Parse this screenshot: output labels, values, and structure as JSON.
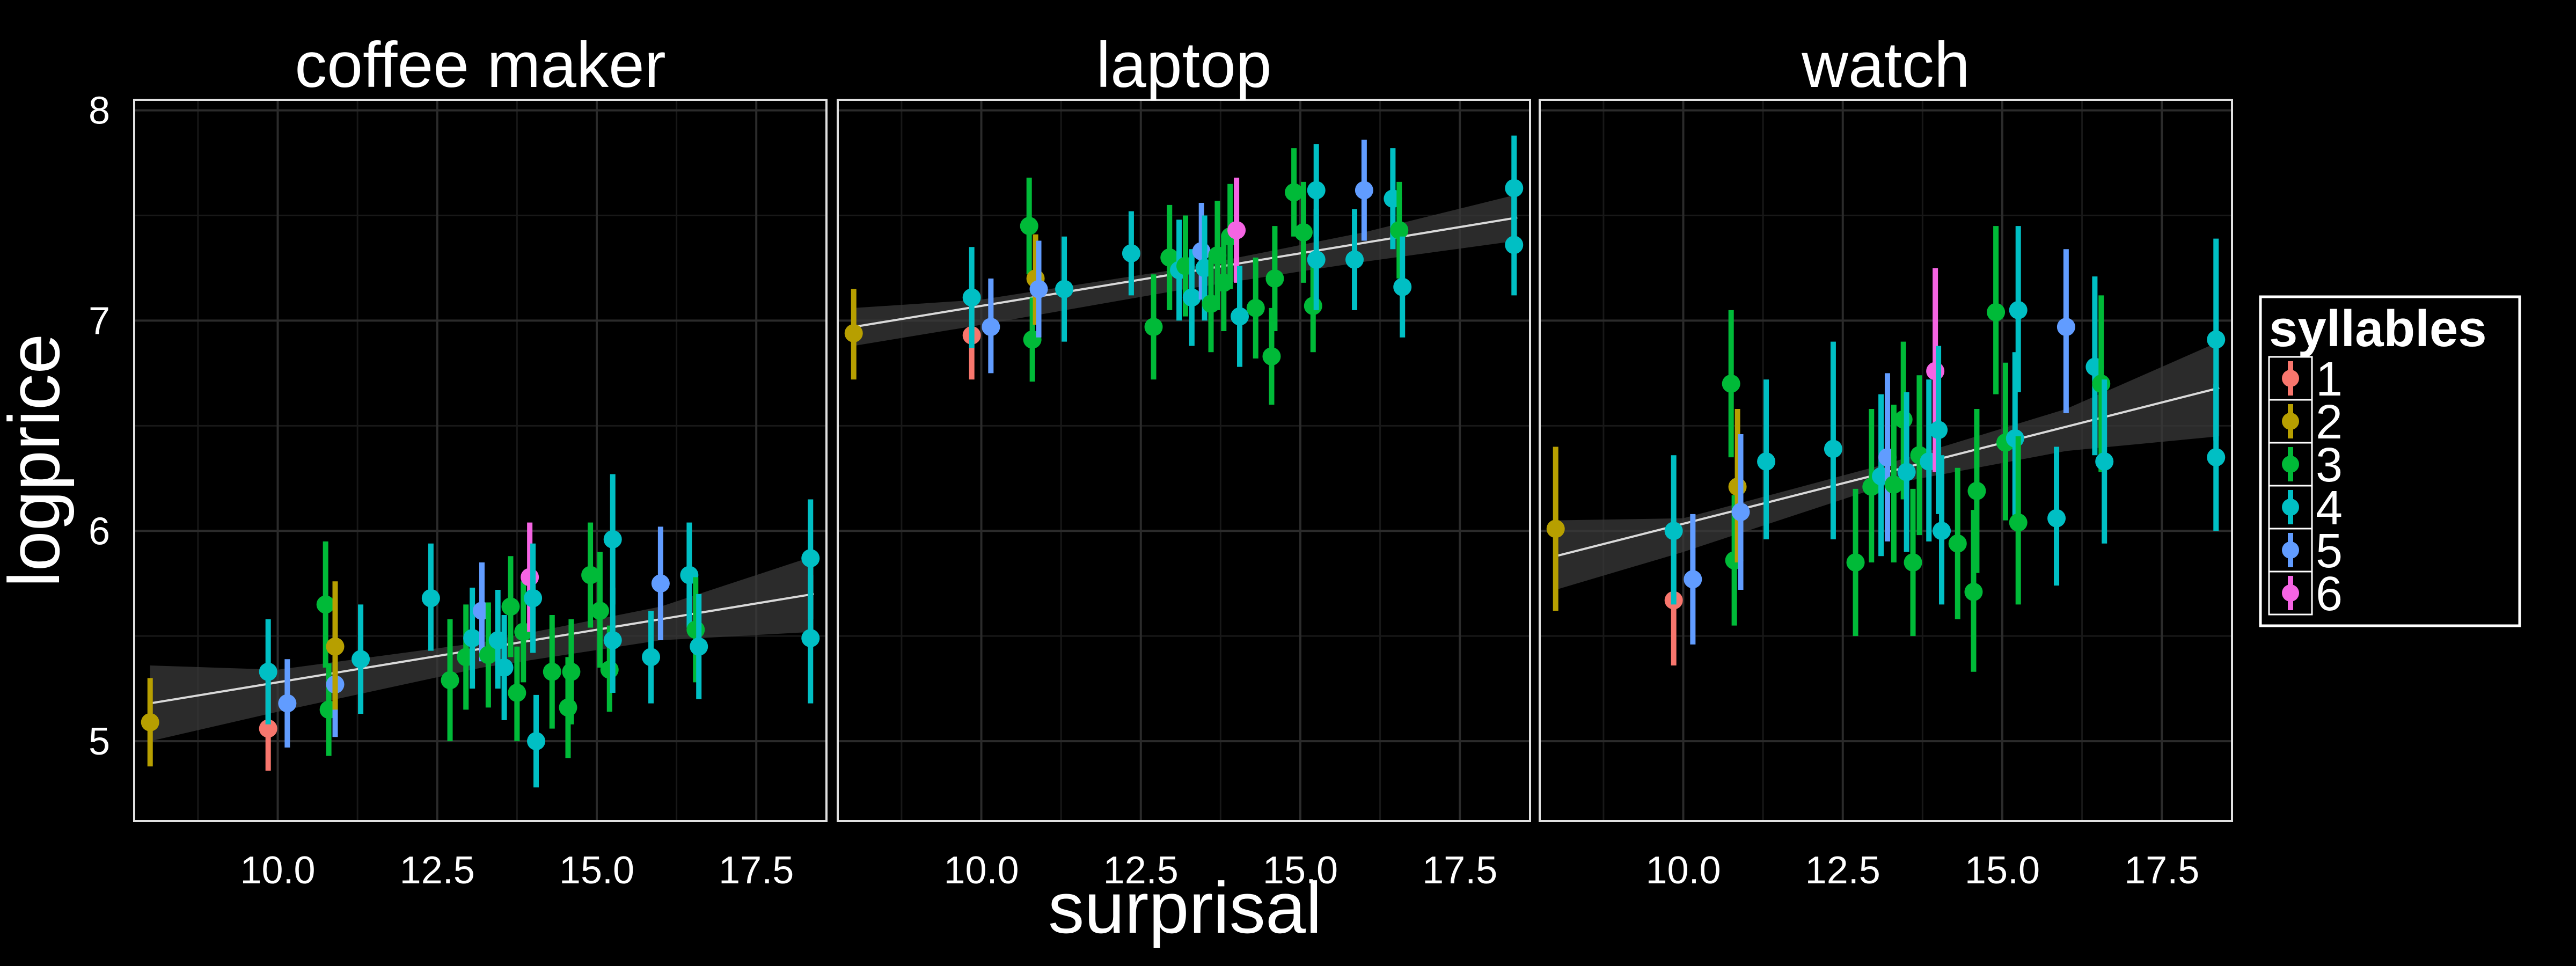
{
  "chart_data": {
    "type": "scatter",
    "subtype": "faceted point-range with linear fit and confidence band",
    "x_label": "surprisal",
    "y_label": "logprice",
    "x_ticks": [
      "10.0",
      "12.5",
      "15.0",
      "17.5"
    ],
    "y_ticks": [
      "5",
      "6",
      "7",
      "8"
    ],
    "xlim": [
      7.75,
      18.6
    ],
    "ylim": [
      4.62,
      8.05
    ],
    "grid": true,
    "legend": {
      "title": "syllables",
      "position": "right",
      "entries": [
        {
          "label": "1",
          "color": "#F8766D"
        },
        {
          "label": "2",
          "color": "#B79F00"
        },
        {
          "label": "3",
          "color": "#00BA38"
        },
        {
          "label": "4",
          "color": "#00BFC4"
        },
        {
          "label": "5",
          "color": "#619CFF"
        },
        {
          "label": "6",
          "color": "#F564E3"
        }
      ]
    },
    "colors": {
      "background": "#000000",
      "panel_border": "#e0e0e0",
      "grid": "#2b2b2b",
      "fit_line": "#d9d9d9",
      "band": "#3a3a3a"
    },
    "panels": [
      {
        "title": "coffee maker",
        "fit": {
          "x": [
            8.0,
            18.4
          ],
          "y": [
            5.18,
            5.7
          ]
        },
        "band": {
          "x": [
            8.0,
            10.0,
            13.2,
            16.0,
            18.4
          ],
          "lo": [
            5.0,
            5.14,
            5.35,
            5.48,
            5.52
          ],
          "hi": [
            5.36,
            5.34,
            5.47,
            5.64,
            5.88
          ]
        },
        "points": [
          {
            "x": 8.0,
            "y": 5.09,
            "lo": 4.88,
            "hi": 5.3,
            "s": 2
          },
          {
            "x": 9.85,
            "y": 5.06,
            "lo": 4.86,
            "hi": 5.26,
            "s": 1
          },
          {
            "x": 9.85,
            "y": 5.33,
            "lo": 5.08,
            "hi": 5.58,
            "s": 4
          },
          {
            "x": 10.15,
            "y": 5.18,
            "lo": 4.97,
            "hi": 5.39,
            "s": 5
          },
          {
            "x": 10.75,
            "y": 5.65,
            "lo": 5.35,
            "hi": 5.95,
            "s": 3
          },
          {
            "x": 10.8,
            "y": 5.15,
            "lo": 4.93,
            "hi": 5.37,
            "s": 3
          },
          {
            "x": 10.9,
            "y": 5.27,
            "lo": 5.02,
            "hi": 5.52,
            "s": 5
          },
          {
            "x": 10.9,
            "y": 5.45,
            "lo": 5.15,
            "hi": 5.76,
            "s": 2
          },
          {
            "x": 11.3,
            "y": 5.39,
            "lo": 5.13,
            "hi": 5.65,
            "s": 4
          },
          {
            "x": 12.4,
            "y": 5.68,
            "lo": 5.43,
            "hi": 5.94,
            "s": 4
          },
          {
            "x": 12.7,
            "y": 5.29,
            "lo": 5.0,
            "hi": 5.58,
            "s": 3
          },
          {
            "x": 12.95,
            "y": 5.4,
            "lo": 5.15,
            "hi": 5.65,
            "s": 3
          },
          {
            "x": 13.05,
            "y": 5.49,
            "lo": 5.25,
            "hi": 5.73,
            "s": 4
          },
          {
            "x": 13.2,
            "y": 5.62,
            "lo": 5.38,
            "hi": 5.85,
            "s": 5
          },
          {
            "x": 13.3,
            "y": 5.41,
            "lo": 5.16,
            "hi": 5.66,
            "s": 3
          },
          {
            "x": 13.45,
            "y": 5.48,
            "lo": 5.25,
            "hi": 5.72,
            "s": 4
          },
          {
            "x": 13.55,
            "y": 5.35,
            "lo": 5.1,
            "hi": 5.6,
            "s": 4
          },
          {
            "x": 13.65,
            "y": 5.64,
            "lo": 5.4,
            "hi": 5.88,
            "s": 3
          },
          {
            "x": 13.75,
            "y": 5.23,
            "lo": 5.0,
            "hi": 5.45,
            "s": 3
          },
          {
            "x": 13.85,
            "y": 5.52,
            "lo": 5.28,
            "hi": 5.76,
            "s": 3
          },
          {
            "x": 13.95,
            "y": 5.78,
            "lo": 5.52,
            "hi": 6.04,
            "s": 6
          },
          {
            "x": 14.0,
            "y": 5.68,
            "lo": 5.42,
            "hi": 5.94,
            "s": 4
          },
          {
            "x": 14.05,
            "y": 5.0,
            "lo": 4.78,
            "hi": 5.22,
            "s": 4
          },
          {
            "x": 14.3,
            "y": 5.33,
            "lo": 5.06,
            "hi": 5.6,
            "s": 3
          },
          {
            "x": 14.55,
            "y": 5.16,
            "lo": 4.92,
            "hi": 5.4,
            "s": 3
          },
          {
            "x": 14.6,
            "y": 5.33,
            "lo": 5.08,
            "hi": 5.58,
            "s": 3
          },
          {
            "x": 14.9,
            "y": 5.79,
            "lo": 5.54,
            "hi": 6.04,
            "s": 3
          },
          {
            "x": 15.05,
            "y": 5.62,
            "lo": 5.35,
            "hi": 5.9,
            "s": 3
          },
          {
            "x": 15.2,
            "y": 5.34,
            "lo": 5.14,
            "hi": 5.55,
            "s": 3
          },
          {
            "x": 15.25,
            "y": 5.96,
            "lo": 5.65,
            "hi": 6.27,
            "s": 4
          },
          {
            "x": 15.25,
            "y": 5.48,
            "lo": 5.23,
            "hi": 5.73,
            "s": 4
          },
          {
            "x": 15.85,
            "y": 5.4,
            "lo": 5.18,
            "hi": 5.62,
            "s": 4
          },
          {
            "x": 16.0,
            "y": 5.75,
            "lo": 5.48,
            "hi": 6.02,
            "s": 5
          },
          {
            "x": 16.45,
            "y": 5.79,
            "lo": 5.54,
            "hi": 6.04,
            "s": 4
          },
          {
            "x": 16.55,
            "y": 5.53,
            "lo": 5.28,
            "hi": 5.78,
            "s": 3
          },
          {
            "x": 16.6,
            "y": 5.45,
            "lo": 5.2,
            "hi": 5.7,
            "s": 4
          },
          {
            "x": 18.35,
            "y": 5.87,
            "lo": 5.58,
            "hi": 6.15,
            "s": 4
          },
          {
            "x": 18.35,
            "y": 5.49,
            "lo": 5.18,
            "hi": 5.79,
            "s": 4
          }
        ]
      },
      {
        "title": "laptop",
        "fit": {
          "x": [
            8.0,
            18.4
          ],
          "y": [
            6.97,
            7.49
          ]
        },
        "band": {
          "x": [
            8.0,
            10.0,
            13.2,
            16.0,
            18.4
          ],
          "lo": [
            6.88,
            6.98,
            7.15,
            7.28,
            7.38
          ],
          "hi": [
            7.06,
            7.1,
            7.25,
            7.42,
            7.6
          ]
        },
        "points": [
          {
            "x": 8.0,
            "y": 6.94,
            "lo": 6.72,
            "hi": 7.15,
            "s": 2
          },
          {
            "x": 9.85,
            "y": 6.93,
            "lo": 6.72,
            "hi": 7.13,
            "s": 1
          },
          {
            "x": 9.85,
            "y": 7.11,
            "lo": 6.87,
            "hi": 7.35,
            "s": 4
          },
          {
            "x": 10.15,
            "y": 6.97,
            "lo": 6.75,
            "hi": 7.2,
            "s": 5
          },
          {
            "x": 10.75,
            "y": 7.45,
            "lo": 7.22,
            "hi": 7.68,
            "s": 3
          },
          {
            "x": 10.8,
            "y": 6.91,
            "lo": 6.71,
            "hi": 7.11,
            "s": 3
          },
          {
            "x": 10.85,
            "y": 7.2,
            "lo": 6.98,
            "hi": 7.41,
            "s": 2
          },
          {
            "x": 10.9,
            "y": 7.15,
            "lo": 6.92,
            "hi": 7.38,
            "s": 5
          },
          {
            "x": 11.3,
            "y": 7.15,
            "lo": 6.9,
            "hi": 7.4,
            "s": 4
          },
          {
            "x": 12.35,
            "y": 7.32,
            "lo": 7.12,
            "hi": 7.52,
            "s": 4
          },
          {
            "x": 12.7,
            "y": 6.97,
            "lo": 6.72,
            "hi": 7.22,
            "s": 3
          },
          {
            "x": 12.95,
            "y": 7.3,
            "lo": 7.05,
            "hi": 7.55,
            "s": 3
          },
          {
            "x": 13.1,
            "y": 7.24,
            "lo": 7.0,
            "hi": 7.48,
            "s": 4
          },
          {
            "x": 13.2,
            "y": 7.26,
            "lo": 7.02,
            "hi": 7.5,
            "s": 3
          },
          {
            "x": 13.3,
            "y": 7.11,
            "lo": 6.88,
            "hi": 7.34,
            "s": 4
          },
          {
            "x": 13.45,
            "y": 7.33,
            "lo": 7.1,
            "hi": 7.56,
            "s": 5
          },
          {
            "x": 13.5,
            "y": 7.25,
            "lo": 7.0,
            "hi": 7.5,
            "s": 4
          },
          {
            "x": 13.6,
            "y": 7.08,
            "lo": 6.85,
            "hi": 7.31,
            "s": 3
          },
          {
            "x": 13.7,
            "y": 7.31,
            "lo": 7.05,
            "hi": 7.57,
            "s": 3
          },
          {
            "x": 13.8,
            "y": 7.18,
            "lo": 6.95,
            "hi": 7.41,
            "s": 3
          },
          {
            "x": 13.9,
            "y": 7.4,
            "lo": 7.15,
            "hi": 7.65,
            "s": 3
          },
          {
            "x": 14.0,
            "y": 7.43,
            "lo": 7.18,
            "hi": 7.68,
            "s": 6
          },
          {
            "x": 14.05,
            "y": 7.02,
            "lo": 6.78,
            "hi": 7.26,
            "s": 4
          },
          {
            "x": 14.3,
            "y": 7.06,
            "lo": 6.82,
            "hi": 7.3,
            "s": 3
          },
          {
            "x": 14.55,
            "y": 6.83,
            "lo": 6.6,
            "hi": 7.06,
            "s": 3
          },
          {
            "x": 14.6,
            "y": 7.2,
            "lo": 6.95,
            "hi": 7.45,
            "s": 3
          },
          {
            "x": 14.9,
            "y": 7.61,
            "lo": 7.4,
            "hi": 7.82,
            "s": 3
          },
          {
            "x": 15.05,
            "y": 7.42,
            "lo": 7.18,
            "hi": 7.66,
            "s": 3
          },
          {
            "x": 15.2,
            "y": 7.07,
            "lo": 6.85,
            "hi": 7.29,
            "s": 3
          },
          {
            "x": 15.25,
            "y": 7.62,
            "lo": 7.4,
            "hi": 7.84,
            "s": 4
          },
          {
            "x": 15.25,
            "y": 7.29,
            "lo": 7.05,
            "hi": 7.53,
            "s": 4
          },
          {
            "x": 15.85,
            "y": 7.29,
            "lo": 7.05,
            "hi": 7.53,
            "s": 4
          },
          {
            "x": 16.0,
            "y": 7.62,
            "lo": 7.38,
            "hi": 7.86,
            "s": 5
          },
          {
            "x": 16.45,
            "y": 7.58,
            "lo": 7.34,
            "hi": 7.82,
            "s": 4
          },
          {
            "x": 16.55,
            "y": 7.43,
            "lo": 7.2,
            "hi": 7.66,
            "s": 3
          },
          {
            "x": 16.6,
            "y": 7.16,
            "lo": 6.92,
            "hi": 7.4,
            "s": 4
          },
          {
            "x": 18.35,
            "y": 7.63,
            "lo": 7.38,
            "hi": 7.88,
            "s": 4
          },
          {
            "x": 18.35,
            "y": 7.36,
            "lo": 7.12,
            "hi": 7.6,
            "s": 4
          }
        ]
      },
      {
        "title": "watch",
        "fit": {
          "x": [
            8.0,
            18.4
          ],
          "y": [
            5.88,
            6.68
          ]
        },
        "band": {
          "x": [
            8.0,
            10.0,
            13.2,
            16.0,
            18.4
          ],
          "lo": [
            5.72,
            5.9,
            6.22,
            6.38,
            6.45
          ],
          "hi": [
            6.05,
            6.06,
            6.32,
            6.58,
            6.9
          ]
        },
        "points": [
          {
            "x": 8.0,
            "y": 6.01,
            "lo": 5.62,
            "hi": 6.4,
            "s": 2
          },
          {
            "x": 9.85,
            "y": 5.67,
            "lo": 5.36,
            "hi": 5.97,
            "s": 1
          },
          {
            "x": 9.85,
            "y": 6.0,
            "lo": 5.65,
            "hi": 6.36,
            "s": 4
          },
          {
            "x": 10.15,
            "y": 5.77,
            "lo": 5.46,
            "hi": 6.08,
            "s": 5
          },
          {
            "x": 10.75,
            "y": 6.7,
            "lo": 6.35,
            "hi": 7.05,
            "s": 3
          },
          {
            "x": 10.8,
            "y": 5.86,
            "lo": 5.55,
            "hi": 6.17,
            "s": 3
          },
          {
            "x": 10.85,
            "y": 6.21,
            "lo": 5.85,
            "hi": 6.58,
            "s": 2
          },
          {
            "x": 10.9,
            "y": 6.09,
            "lo": 5.72,
            "hi": 6.46,
            "s": 5
          },
          {
            "x": 11.3,
            "y": 6.33,
            "lo": 5.96,
            "hi": 6.72,
            "s": 4
          },
          {
            "x": 12.35,
            "y": 6.39,
            "lo": 5.96,
            "hi": 6.9,
            "s": 4
          },
          {
            "x": 12.7,
            "y": 5.85,
            "lo": 5.5,
            "hi": 6.2,
            "s": 3
          },
          {
            "x": 12.95,
            "y": 6.21,
            "lo": 5.85,
            "hi": 6.58,
            "s": 3
          },
          {
            "x": 13.1,
            "y": 6.26,
            "lo": 5.88,
            "hi": 6.65,
            "s": 4
          },
          {
            "x": 13.2,
            "y": 6.35,
            "lo": 5.95,
            "hi": 6.75,
            "s": 5
          },
          {
            "x": 13.3,
            "y": 6.22,
            "lo": 5.85,
            "hi": 6.6,
            "s": 3
          },
          {
            "x": 13.45,
            "y": 6.53,
            "lo": 6.15,
            "hi": 6.9,
            "s": 3
          },
          {
            "x": 13.5,
            "y": 6.28,
            "lo": 5.9,
            "hi": 6.66,
            "s": 4
          },
          {
            "x": 13.6,
            "y": 5.85,
            "lo": 5.5,
            "hi": 6.2,
            "s": 3
          },
          {
            "x": 13.7,
            "y": 6.36,
            "lo": 5.98,
            "hi": 6.74,
            "s": 3
          },
          {
            "x": 13.85,
            "y": 6.33,
            "lo": 5.95,
            "hi": 6.72,
            "s": 4
          },
          {
            "x": 13.95,
            "y": 6.76,
            "lo": 6.28,
            "hi": 7.25,
            "s": 6
          },
          {
            "x": 14.0,
            "y": 6.48,
            "lo": 6.08,
            "hi": 6.88,
            "s": 4
          },
          {
            "x": 14.05,
            "y": 6.0,
            "lo": 5.65,
            "hi": 6.36,
            "s": 4
          },
          {
            "x": 14.3,
            "y": 5.94,
            "lo": 5.58,
            "hi": 6.3,
            "s": 3
          },
          {
            "x": 14.55,
            "y": 5.71,
            "lo": 5.33,
            "hi": 6.1,
            "s": 3
          },
          {
            "x": 14.6,
            "y": 6.19,
            "lo": 5.8,
            "hi": 6.58,
            "s": 3
          },
          {
            "x": 14.9,
            "y": 7.04,
            "lo": 6.65,
            "hi": 7.45,
            "s": 3
          },
          {
            "x": 15.05,
            "y": 6.42,
            "lo": 6.05,
            "hi": 6.8,
            "s": 3
          },
          {
            "x": 15.2,
            "y": 6.44,
            "lo": 6.05,
            "hi": 6.85,
            "s": 4
          },
          {
            "x": 15.25,
            "y": 7.05,
            "lo": 6.66,
            "hi": 7.45,
            "s": 4
          },
          {
            "x": 15.25,
            "y": 6.04,
            "lo": 5.65,
            "hi": 6.45,
            "s": 3
          },
          {
            "x": 15.85,
            "y": 6.06,
            "lo": 5.74,
            "hi": 6.4,
            "s": 4
          },
          {
            "x": 16.0,
            "y": 6.97,
            "lo": 6.56,
            "hi": 7.34,
            "s": 5
          },
          {
            "x": 16.45,
            "y": 6.78,
            "lo": 6.36,
            "hi": 7.21,
            "s": 4
          },
          {
            "x": 16.55,
            "y": 6.7,
            "lo": 6.28,
            "hi": 7.12,
            "s": 3
          },
          {
            "x": 16.6,
            "y": 6.33,
            "lo": 5.94,
            "hi": 6.72,
            "s": 4
          },
          {
            "x": 18.35,
            "y": 6.91,
            "lo": 6.43,
            "hi": 7.39,
            "s": 4
          },
          {
            "x": 18.35,
            "y": 6.35,
            "lo": 6.0,
            "hi": 6.7,
            "s": 4
          }
        ]
      }
    ]
  }
}
